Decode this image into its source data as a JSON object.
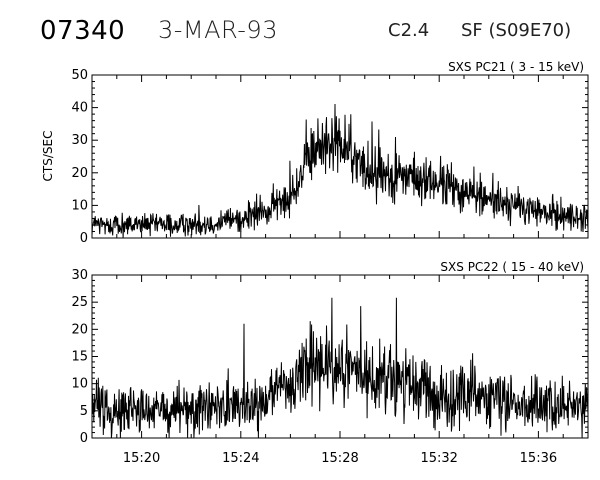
{
  "header": {
    "event_id": "07340",
    "date": "3-MAR-93",
    "goes_class": "C2.4",
    "location": "SF (S09E70)"
  },
  "chart_data": [
    {
      "type": "line",
      "title": "SXS PC21  (  3 - 15 keV)",
      "ylabel": "CTS/SEC",
      "xlabel": "",
      "xlim": [
        "15:18",
        "15:38"
      ],
      "ylim": [
        0,
        50
      ],
      "yticks": [
        "0",
        "10",
        "20",
        "30",
        "40",
        "50"
      ],
      "xticks": [],
      "grid": false,
      "x": [
        "15:18",
        "15:20",
        "15:22",
        "15:23",
        "15:24",
        "15:25",
        "15:26",
        "15:26:30",
        "15:27",
        "15:27:30",
        "15:28",
        "15:28:30",
        "15:29",
        "15:30",
        "15:31",
        "15:32",
        "15:33",
        "15:34",
        "15:35",
        "15:36",
        "15:37",
        "15:38"
      ],
      "series": [
        {
          "values": [
            4,
            4,
            4,
            5,
            6,
            8,
            13,
            20,
            27,
            30,
            29,
            25,
            21,
            20,
            18,
            17,
            14,
            12,
            10,
            8,
            7,
            6
          ]
        }
      ]
    },
    {
      "type": "line",
      "title": "SXS PC22  ( 15 - 40 keV)",
      "ylabel": "",
      "xlabel": "",
      "xlim": [
        "15:18",
        "15:38"
      ],
      "ylim": [
        0,
        30
      ],
      "yticks": [
        "0",
        "5",
        "10",
        "15",
        "20",
        "25",
        "30"
      ],
      "xticks": [
        "15:20",
        "15:24",
        "15:28",
        "15:32",
        "15:36"
      ],
      "grid": false,
      "x": [
        "15:18",
        "15:20",
        "15:22",
        "15:23",
        "15:24",
        "15:25",
        "15:26",
        "15:26:30",
        "15:27",
        "15:27:30",
        "15:28",
        "15:28:30",
        "15:29",
        "15:30",
        "15:31",
        "15:32",
        "15:33",
        "15:34",
        "15:35",
        "15:36",
        "15:37",
        "15:38"
      ],
      "series": [
        {
          "values": [
            6,
            5,
            5,
            6,
            6,
            7,
            9,
            13,
            14,
            14,
            13,
            12,
            11,
            10,
            9,
            8,
            8,
            7,
            7,
            6,
            6,
            5
          ]
        }
      ]
    }
  ]
}
